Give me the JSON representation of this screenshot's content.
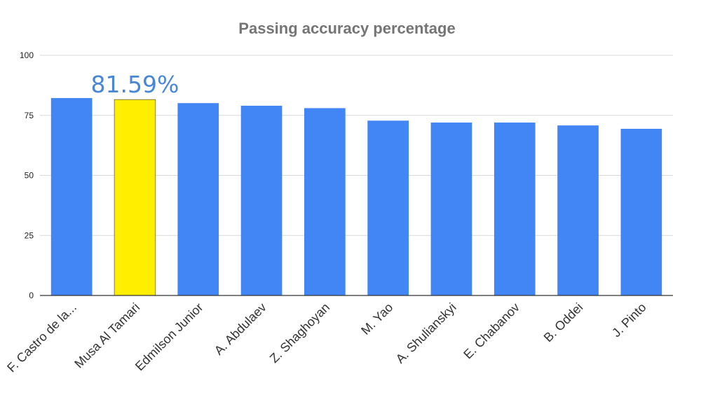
{
  "chart_data": {
    "type": "bar",
    "title": "Passing accuracy percentage",
    "xlabel": "",
    "ylabel": "",
    "ylim": [
      0,
      100
    ],
    "yticks": [
      0,
      25,
      50,
      75,
      100
    ],
    "grid": true,
    "legend": "none",
    "categories": [
      "F. Castro de la...",
      "Musa Al Tamari",
      "Edmilson Junior",
      "A. Abdulaev",
      "Z. Shaghoyan",
      "M. Yao",
      "A. Shulianskyi",
      "E. Chabanov",
      "B. Oddei",
      "J. Pinto"
    ],
    "values": [
      82.2,
      81.59,
      80.1,
      79.0,
      78.0,
      72.8,
      72.0,
      72.0,
      70.8,
      69.4
    ],
    "highlight": {
      "category": "Musa Al Tamari",
      "label": "81.59%",
      "color": "#ffee00"
    },
    "colors": {
      "bar": "#4285f4",
      "annotation": "#4a86d8"
    }
  }
}
